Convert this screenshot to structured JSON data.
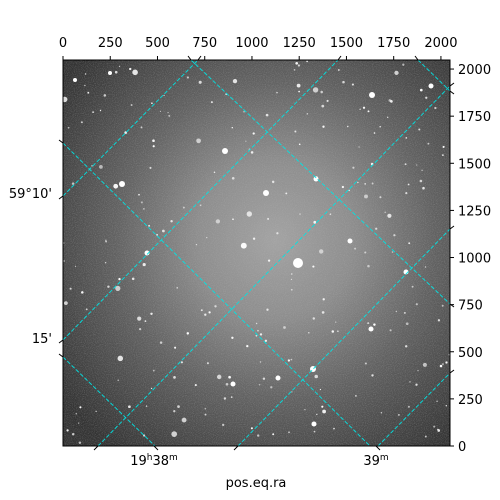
{
  "chart_data": {
    "type": "image",
    "pixel_axes": {
      "x_ticks": [
        0,
        250,
        500,
        750,
        1000,
        1250,
        1500,
        1750,
        2000
      ],
      "y_ticks": [
        0,
        250,
        500,
        750,
        1000,
        1250,
        1500,
        1750,
        2000
      ],
      "x_range": [
        0,
        2048
      ],
      "y_range": [
        0,
        2048
      ]
    },
    "world_axes": {
      "ra_label": "pos.eq.ra",
      "ra_ticks": [
        {
          "label": "19h38m",
          "main": "19",
          "h": "h",
          "min": "38",
          "m": "m"
        },
        {
          "label": "39m",
          "main": "39",
          "h": "",
          "min": "",
          "m": "m"
        }
      ],
      "dec_ticks": [
        {
          "label": "59°10'"
        },
        {
          "label": "15'"
        }
      ]
    },
    "grid": true,
    "grid_color": "#00e5e5",
    "image_colormap": "gray"
  }
}
